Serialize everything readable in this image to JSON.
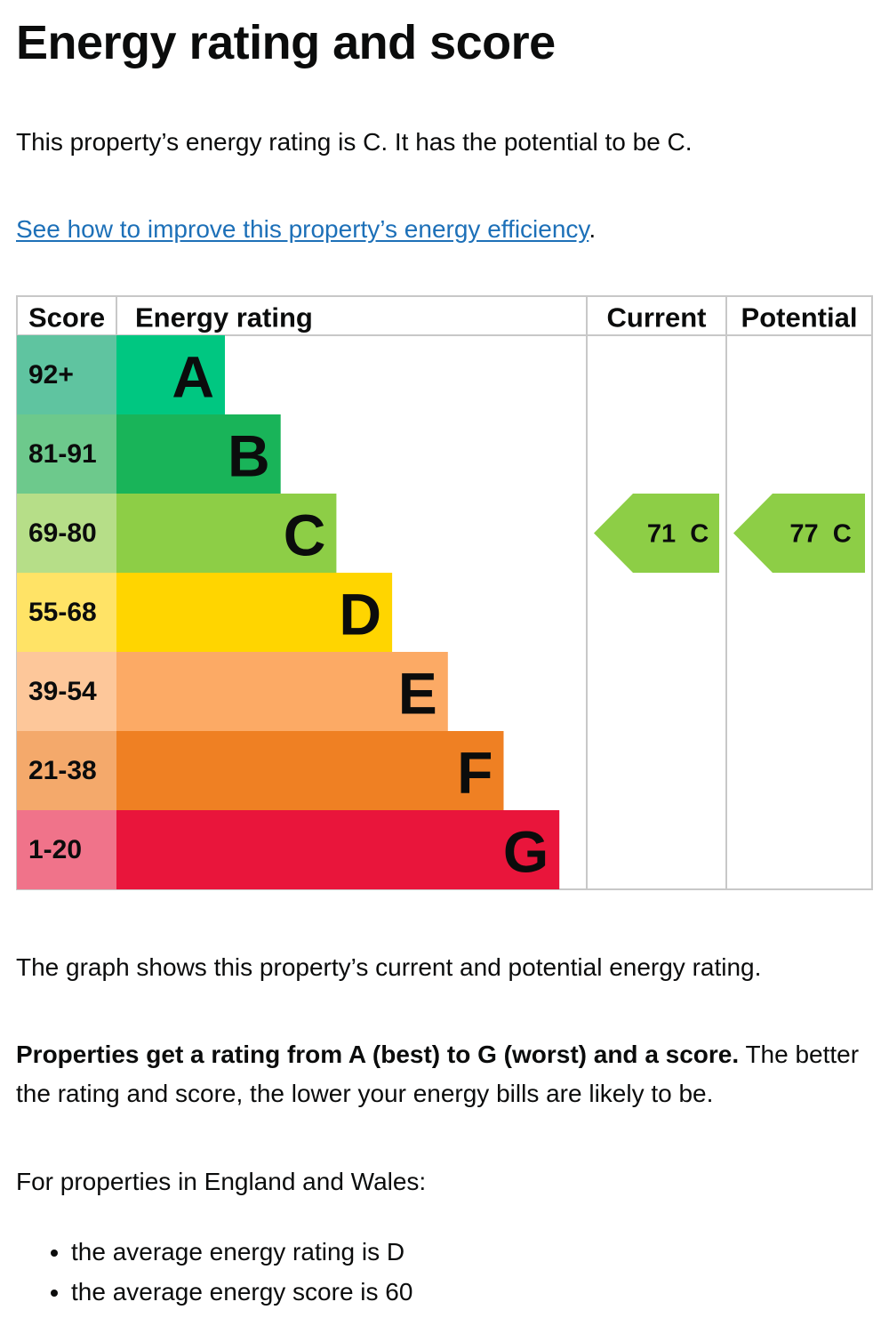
{
  "heading": "Energy rating and score",
  "intro": "This property’s energy rating is C. It has the potential to be C.",
  "improve_link": "See how to improve this property’s energy efficiency",
  "improve_suffix": ".",
  "chart_data": {
    "type": "table",
    "headers": {
      "score": "Score",
      "rating": "Energy rating",
      "current": "Current",
      "potential": "Potential"
    },
    "bands": [
      {
        "letter": "A",
        "score": "92+",
        "color": "#00c781",
        "score_color": "#5fc4a0"
      },
      {
        "letter": "B",
        "score": "81-91",
        "color": "#19b459",
        "score_color": "#6dc98c"
      },
      {
        "letter": "C",
        "score": "69-80",
        "color": "#8dce46",
        "score_color": "#b6de88"
      },
      {
        "letter": "D",
        "score": "55-68",
        "color": "#ffd500",
        "score_color": "#ffe366"
      },
      {
        "letter": "E",
        "score": "39-54",
        "color": "#fcaa65",
        "score_color": "#fdc79a"
      },
      {
        "letter": "F",
        "score": "21-38",
        "color": "#ef8023",
        "score_color": "#f4a96b"
      },
      {
        "letter": "G",
        "score": "1-20",
        "color": "#e9153b",
        "score_color": "#f0738a"
      }
    ],
    "current": {
      "score": 71,
      "band": "C",
      "label": "71  C",
      "color": "#8dce46"
    },
    "potential": {
      "score": 77,
      "band": "C",
      "label": "77  C",
      "color": "#8dce46"
    }
  },
  "graph_note": "The graph shows this property’s current and potential energy rating.",
  "ratings_bold": "Properties get a rating from A (best) to G (worst) and a score.",
  "ratings_rest": " The better the rating and score, the lower your energy bills are likely to be.",
  "region": "For properties in England and Wales:",
  "averages": [
    "the average energy rating is D",
    "the average energy score is 60"
  ]
}
